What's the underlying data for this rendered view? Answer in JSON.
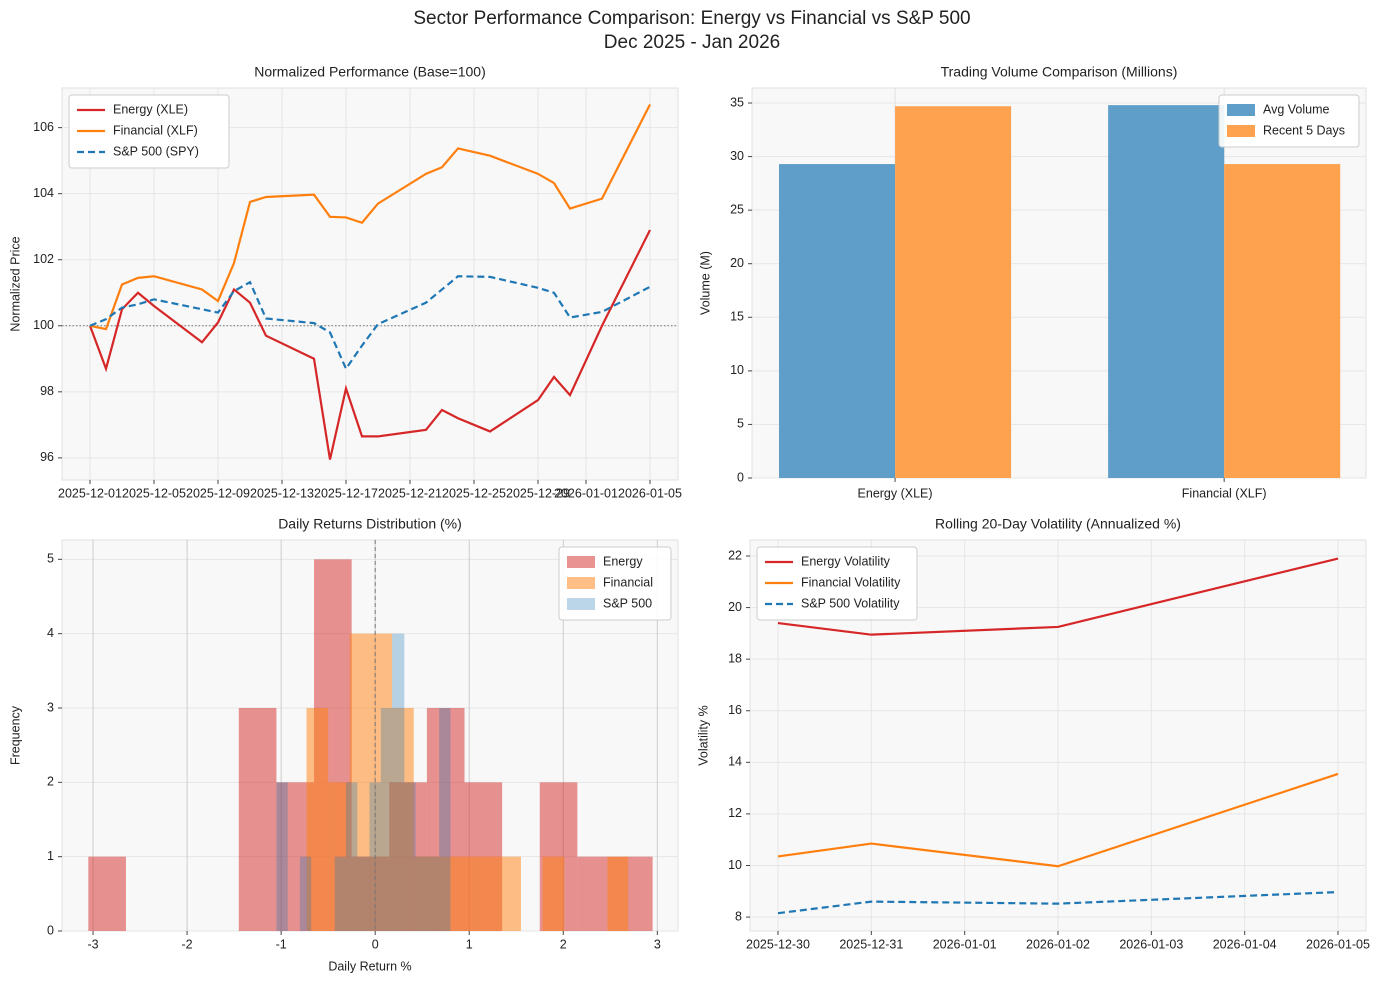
{
  "title": "Sector Performance Comparison: Energy vs Financial vs S&P 500",
  "subtitle": "Dec 2025 - Jan 2026",
  "chart_data": [
    {
      "type": "line",
      "title": "Normalized Performance (Base=100)",
      "ylabel": "Normalized Price",
      "x": [
        "2025-12-01",
        "2025-12-02",
        "2025-12-03",
        "2025-12-04",
        "2025-12-05",
        "2025-12-08",
        "2025-12-09",
        "2025-12-10",
        "2025-12-11",
        "2025-12-12",
        "2025-12-15",
        "2025-12-16",
        "2025-12-17",
        "2025-12-18",
        "2025-12-19",
        "2025-12-22",
        "2025-12-23",
        "2025-12-24",
        "2025-12-26",
        "2025-12-29",
        "2025-12-30",
        "2025-12-31",
        "2026-01-02",
        "2026-01-05"
      ],
      "series": [
        {
          "name": "Energy (XLE)",
          "color": "#d62728",
          "dashed": false,
          "values": [
            100,
            98.7,
            100.5,
            101.0,
            100.6,
            99.5,
            100.1,
            101.1,
            100.7,
            99.7,
            99.0,
            95.95,
            98.1,
            96.65,
            96.65,
            96.85,
            97.45,
            97.2,
            96.8,
            97.75,
            98.45,
            97.9,
            100.0,
            102.9
          ]
        },
        {
          "name": "Financial (XLF)",
          "color": "#ff7f0e",
          "dashed": false,
          "values": [
            100,
            99.9,
            101.25,
            101.45,
            101.5,
            101.1,
            100.75,
            101.9,
            103.75,
            103.9,
            103.97,
            103.3,
            103.28,
            103.12,
            103.7,
            104.6,
            104.8,
            105.37,
            105.15,
            104.6,
            104.32,
            103.55,
            103.85,
            106.7
          ]
        },
        {
          "name": "S&P 500 (SPY)",
          "color": "#1f77b4",
          "dashed": true,
          "values": [
            100,
            100.2,
            100.55,
            100.65,
            100.8,
            100.5,
            100.4,
            101.05,
            101.32,
            100.22,
            100.08,
            99.8,
            98.7,
            99.4,
            100.05,
            100.7,
            101.1,
            101.5,
            101.48,
            101.15,
            101.0,
            100.25,
            100.42,
            101.18
          ]
        }
      ],
      "xlim": [
        "2025-11-29T06:00",
        "2026-01-06T18:00"
      ],
      "xticks": [
        "2025-12-01",
        "2025-12-05",
        "2025-12-09",
        "2025-12-13",
        "2025-12-17",
        "2025-12-21",
        "2025-12-25",
        "2025-12-29",
        "2026-01-01",
        "2026-01-05"
      ],
      "ylim": [
        95.33,
        107.2
      ],
      "yticks": [
        96,
        98,
        100,
        102,
        104,
        106
      ],
      "hline": 100,
      "grid": true,
      "legend": "upper left"
    },
    {
      "type": "bar",
      "title": "Trading Volume Comparison (Millions)",
      "ylabel": "Volume (M)",
      "categories": [
        "Energy (XLE)",
        "Financial (XLF)"
      ],
      "series": [
        {
          "name": "Avg Volume",
          "color": "#5f9ec9",
          "values": [
            29.3,
            34.8
          ]
        },
        {
          "name": "Recent 5 Days",
          "color": "#ffa24f",
          "values": [
            34.7,
            29.3
          ]
        }
      ],
      "ylim": [
        0,
        36.4
      ],
      "yticks": [
        0,
        5,
        10,
        15,
        20,
        25,
        30,
        35
      ],
      "grid": true,
      "legend": "upper right"
    },
    {
      "type": "histogram",
      "title": "Daily Returns Distribution (%)",
      "xlabel": "Daily Return %",
      "ylabel": "Frequency",
      "series": [
        {
          "name": "Energy",
          "color": "#d62728",
          "alpha": 0.5,
          "bins": [
            -3.05,
            -2.65,
            -2.25,
            -1.85,
            -1.45,
            -1.05,
            -0.65,
            -0.25,
            0.15,
            0.55,
            0.95,
            1.35,
            1.75,
            2.15,
            2.55,
            2.95
          ],
          "values": [
            1,
            0,
            0,
            0,
            3,
            2,
            5,
            1,
            2,
            3,
            2,
            0,
            2,
            1,
            1
          ]
        },
        {
          "name": "Financial",
          "color": "#ff7f0e",
          "alpha": 0.5,
          "bins": [
            -0.73,
            -0.5,
            -0.27,
            -0.05,
            0.18,
            0.41,
            0.64,
            0.87,
            1.09,
            1.32,
            1.55,
            1.78,
            2.01,
            2.24,
            2.47,
            2.69
          ],
          "values": [
            3,
            2,
            4,
            4,
            3,
            1,
            1,
            1,
            1,
            1,
            0,
            1,
            0,
            0,
            1
          ]
        },
        {
          "name": "S&P 500",
          "color": "#1f77b4",
          "alpha": 0.3,
          "bins": [
            -1.05,
            -0.93,
            -0.8,
            -0.68,
            -0.56,
            -0.43,
            -0.31,
            -0.19,
            -0.06,
            0.06,
            0.18,
            0.31,
            0.43,
            0.55,
            0.68,
            0.8
          ],
          "values": [
            2,
            0,
            1,
            0,
            0,
            1,
            2,
            1,
            2,
            3,
            4,
            2,
            1,
            1,
            3
          ]
        }
      ],
      "xlim": [
        -3.33,
        3.22
      ],
      "xticks": [
        -3,
        -2,
        -1,
        0,
        1,
        2,
        3
      ],
      "ylim": [
        0,
        5.26
      ],
      "yticks": [
        0,
        1,
        2,
        3,
        4,
        5
      ],
      "vline": 0,
      "grid": true,
      "legend": "upper right"
    },
    {
      "type": "line",
      "title": "Rolling 20-Day Volatility (Annualized %)",
      "ylabel": "Volatility %",
      "x": [
        "2025-12-30",
        "2025-12-31",
        "2026-01-02",
        "2026-01-05"
      ],
      "series": [
        {
          "name": "Energy Volatility",
          "color": "#d62728",
          "dashed": false,
          "values": [
            19.4,
            18.95,
            19.25,
            21.9
          ]
        },
        {
          "name": "Financial Volatility",
          "color": "#ff7f0e",
          "dashed": false,
          "values": [
            10.35,
            10.85,
            9.97,
            13.55
          ]
        },
        {
          "name": "S&P 500 Volatility",
          "color": "#1f77b4",
          "dashed": true,
          "values": [
            8.15,
            8.6,
            8.52,
            8.97
          ]
        }
      ],
      "xlim": [
        "2025-12-29T16:48",
        "2026-01-05T07:12"
      ],
      "xticks": [
        "2025-12-30",
        "2025-12-31",
        "2026-01-01",
        "2026-01-02",
        "2026-01-03",
        "2026-01-04",
        "2026-01-05"
      ],
      "ylim": [
        7.46,
        22.62
      ],
      "yticks": [
        8,
        10,
        12,
        14,
        16,
        18,
        20,
        22
      ],
      "grid": true,
      "legend": "upper left"
    }
  ]
}
